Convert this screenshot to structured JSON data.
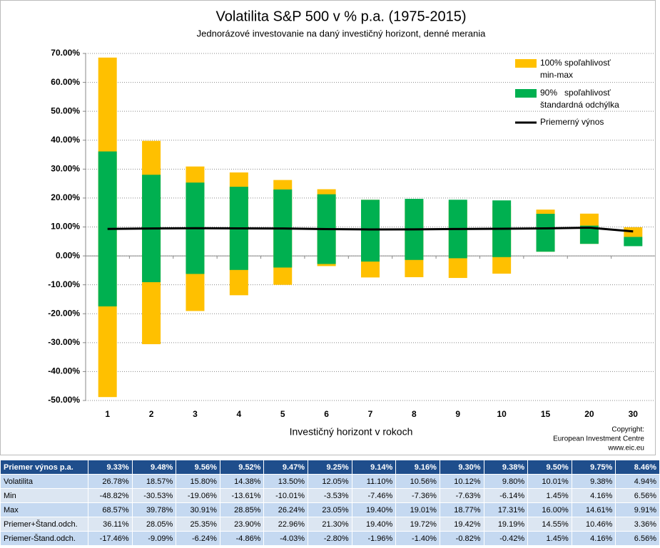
{
  "chart_data": {
    "type": "range-bar",
    "title": "Volatilita S&P 500 v % p.a. (1975-2015)",
    "subtitle": "Jednorázové investovanie na daný investičný horizont, denné merania",
    "x_label": "Investičný horizont v rokoch",
    "copyright": [
      "Copyright:",
      "European Investment Centre",
      "www.eic.eu"
    ],
    "categories": [
      "1",
      "2",
      "3",
      "4",
      "5",
      "6",
      "7",
      "8",
      "9",
      "10",
      "15",
      "20",
      "30"
    ],
    "ylim": [
      -50,
      70
    ],
    "yticks": [
      {
        "value": -50,
        "label": "-50.00%"
      },
      {
        "value": -40,
        "label": "-40.00%"
      },
      {
        "value": -30,
        "label": "-30.00%"
      },
      {
        "value": -20,
        "label": "-20.00%"
      },
      {
        "value": -10,
        "label": "-10.00%"
      },
      {
        "value": 0,
        "label": "0.00%"
      },
      {
        "value": 10,
        "label": "10.00%"
      },
      {
        "value": 20,
        "label": "20.00%"
      },
      {
        "value": 30,
        "label": "30.00%"
      },
      {
        "value": 40,
        "label": "40.00%"
      },
      {
        "value": 50,
        "label": "50.00%"
      },
      {
        "value": 60,
        "label": "60.00%"
      },
      {
        "value": 70,
        "label": "70.00%"
      }
    ],
    "grid": true,
    "range_color": "#ffc000",
    "sd_color": "#00b050",
    "mean_color": "#000000",
    "legend": [
      [
        "100% spoľahlivosť",
        "min-max"
      ],
      [
        "90%   spoľahlivosť",
        "štandardná odchýlka"
      ],
      [
        "Priemerný výnos"
      ]
    ],
    "series": [
      {
        "name": "Priemer výnos p.a.",
        "values": [
          9.33,
          9.48,
          9.56,
          9.52,
          9.47,
          9.25,
          9.14,
          9.16,
          9.3,
          9.38,
          9.5,
          9.75,
          8.46
        ],
        "value_labels": [
          "9.33%",
          "9.48%",
          "9.56%",
          "9.52%",
          "9.47%",
          "9.25%",
          "9.14%",
          "9.16%",
          "9.30%",
          "9.38%",
          "9.50%",
          "9.75%",
          "8.46%"
        ]
      },
      {
        "name": "Volatilita",
        "values": [
          26.78,
          18.57,
          15.8,
          14.38,
          13.5,
          12.05,
          11.1,
          10.56,
          10.12,
          9.8,
          10.01,
          9.38,
          4.94
        ],
        "value_labels": [
          "26.78%",
          "18.57%",
          "15.80%",
          "14.38%",
          "13.50%",
          "12.05%",
          "11.10%",
          "10.56%",
          "10.12%",
          "9.80%",
          "10.01%",
          "9.38%",
          "4.94%"
        ]
      },
      {
        "name": "Min",
        "values": [
          -48.82,
          -30.53,
          -19.06,
          -13.61,
          -10.01,
          -3.53,
          -7.46,
          -7.36,
          -7.63,
          -6.14,
          1.45,
          4.16,
          6.56
        ],
        "value_labels": [
          "-48.82%",
          "-30.53%",
          "-19.06%",
          "-13.61%",
          "-10.01%",
          "-3.53%",
          "-7.46%",
          "-7.36%",
          "-7.63%",
          "-6.14%",
          "1.45%",
          "4.16%",
          "6.56%"
        ]
      },
      {
        "name": "Max",
        "values": [
          68.57,
          39.78,
          30.91,
          28.85,
          26.24,
          23.05,
          19.4,
          19.01,
          18.77,
          17.31,
          16.0,
          14.61,
          9.91
        ],
        "value_labels": [
          "68.57%",
          "39.78%",
          "30.91%",
          "28.85%",
          "26.24%",
          "23.05%",
          "19.40%",
          "19.01%",
          "18.77%",
          "17.31%",
          "16.00%",
          "14.61%",
          "9.91%"
        ]
      },
      {
        "name": "Priemer+Štand.odch.",
        "values": [
          36.11,
          28.05,
          25.35,
          23.9,
          22.96,
          21.3,
          19.4,
          19.72,
          19.42,
          19.19,
          14.55,
          10.46,
          3.36
        ],
        "value_labels": [
          "36.11%",
          "28.05%",
          "25.35%",
          "23.90%",
          "22.96%",
          "21.30%",
          "19.40%",
          "19.72%",
          "19.42%",
          "19.19%",
          "14.55%",
          "10.46%",
          "3.36%"
        ]
      },
      {
        "name": "Priemer-Štand.odch.",
        "values": [
          -17.46,
          -9.09,
          -6.24,
          -4.86,
          -4.03,
          -2.8,
          -1.96,
          -1.4,
          -0.82,
          -0.42,
          1.45,
          4.16,
          6.56
        ],
        "value_labels": [
          "-17.46%",
          "-9.09%",
          "-6.24%",
          "-4.86%",
          "-4.03%",
          "-2.80%",
          "-1.96%",
          "-1.40%",
          "-0.82%",
          "-0.42%",
          "1.45%",
          "4.16%",
          "6.56%"
        ]
      }
    ]
  }
}
